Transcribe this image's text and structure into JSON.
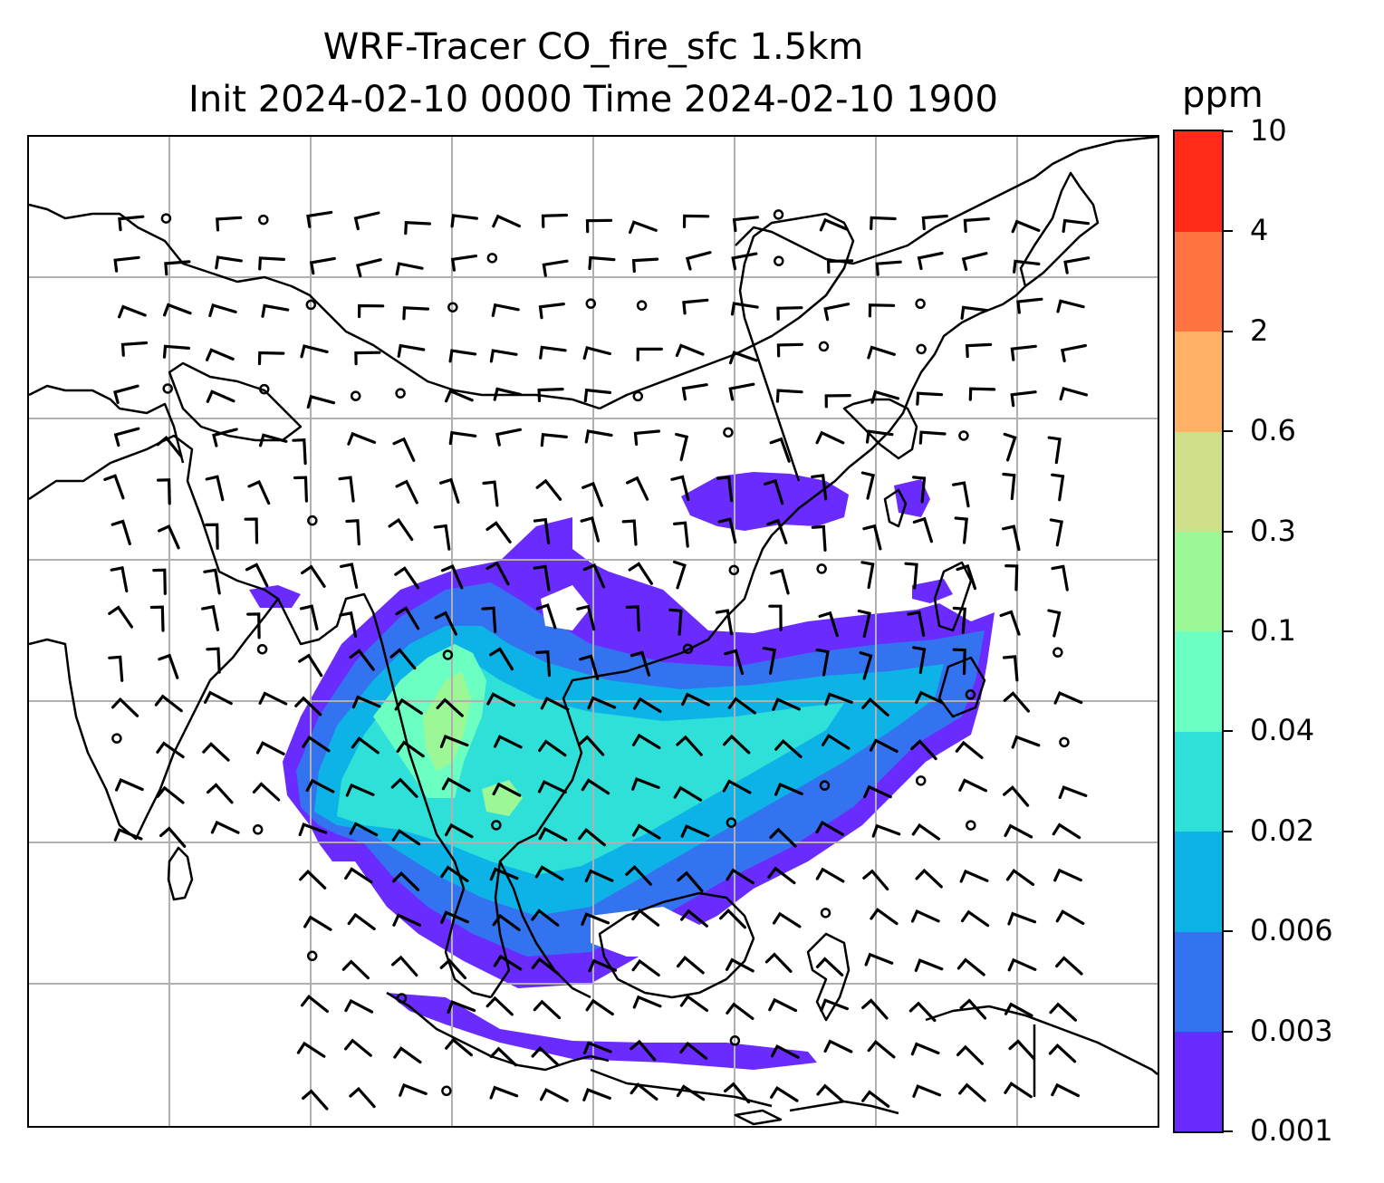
{
  "title": {
    "line1": "WRF-Tracer CO_fire_sfc 1.5km",
    "line2": "Init 2024-02-10 0000 Time 2024-02-10 1900"
  },
  "colorbar": {
    "unit": "ppm",
    "levels": [
      "0.001",
      "0.003",
      "0.006",
      "0.02",
      "0.04",
      "0.1",
      "0.3",
      "0.6",
      "2",
      "4",
      "10"
    ],
    "colors": [
      "#6a2bff",
      "#3473f0",
      "#0db2e6",
      "#2ee0d8",
      "#6cffc2",
      "#9cf796",
      "#cfe08a",
      "#ffb266",
      "#ff7440",
      "#ff2a18"
    ]
  },
  "map": {
    "gridlines": true,
    "grid_color": "#b0b0b0",
    "coastline_color": "#000000",
    "wind_barb_color": "#000000"
  }
}
